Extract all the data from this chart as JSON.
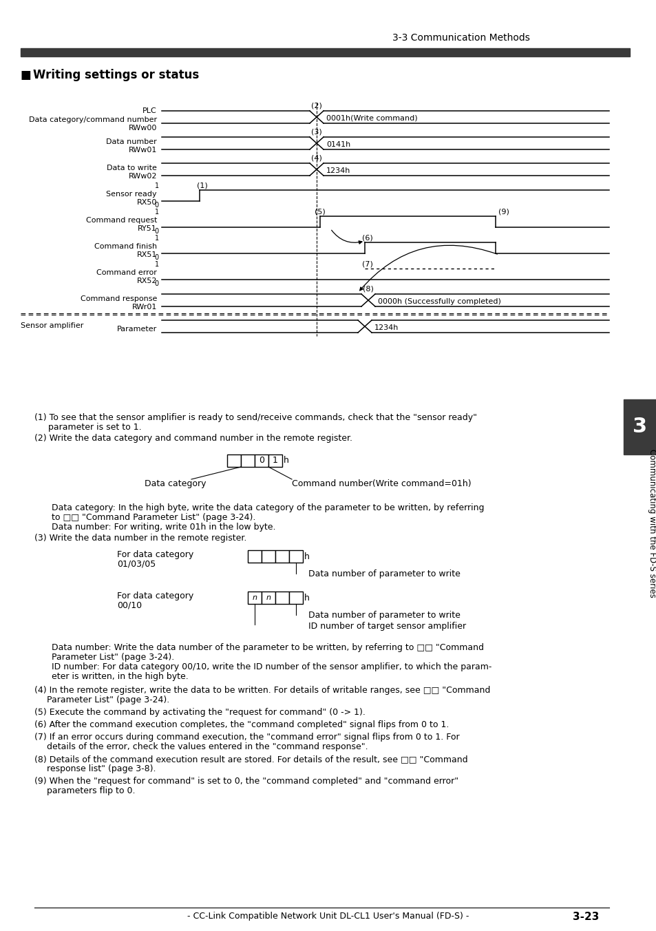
{
  "title": "3-3 Communication Methods",
  "section_title": "Writing settings or status",
  "header_bar_color": "#3a3a3a",
  "bg_color": "#ffffff",
  "text_color": "#000000",
  "footer": "- CC-Link Compatible Network Unit DL-CL1 User's Manual (FD-S) -",
  "page_number": "3-23",
  "side_text": "Communicating with the FD-S series"
}
